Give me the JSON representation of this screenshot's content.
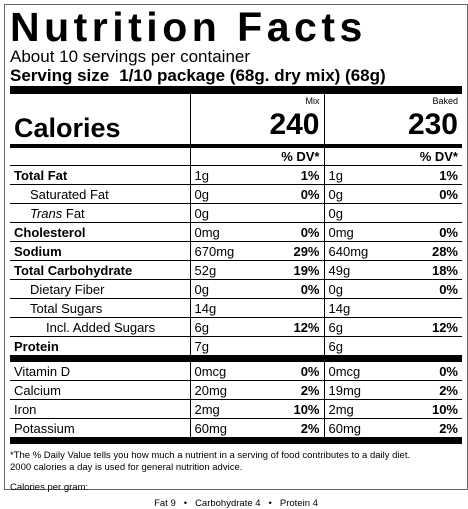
{
  "header": {
    "title": "Nutrition Facts",
    "servings": "About 10 servings per container",
    "serving_size_label": "Serving size",
    "serving_size_value": "1/10 package (68g. dry mix) (68g)"
  },
  "columns": [
    "Mix",
    "Baked"
  ],
  "calories": {
    "label": "Calories",
    "values": [
      "240",
      "230"
    ]
  },
  "dv_header": "% DV*",
  "nutrients": [
    {
      "label": "Total Fat",
      "bold": true,
      "indent": 0,
      "mix": [
        "1g",
        "1%"
      ],
      "baked": [
        "1g",
        "1%"
      ]
    },
    {
      "label": "Saturated Fat",
      "bold": false,
      "indent": 1,
      "mix": [
        "0g",
        "0%"
      ],
      "baked": [
        "0g",
        "0%"
      ]
    },
    {
      "label_italic": "Trans",
      "label": "Fat",
      "bold": false,
      "indent": 1,
      "mix": [
        "0g"
      ],
      "baked": [
        "0g"
      ]
    },
    {
      "label": "Cholesterol",
      "bold": true,
      "indent": 0,
      "mix": [
        "0mg",
        "0%"
      ],
      "baked": [
        "0mg",
        "0%"
      ]
    },
    {
      "label": "Sodium",
      "bold": true,
      "indent": 0,
      "mix": [
        "670mg",
        "29%"
      ],
      "baked": [
        "640mg",
        "28%"
      ]
    },
    {
      "label": "Total Carbohydrate",
      "bold": true,
      "indent": 0,
      "mix": [
        "52g",
        "19%"
      ],
      "baked": [
        "49g",
        "18%"
      ]
    },
    {
      "label": "Dietary Fiber",
      "bold": false,
      "indent": 1,
      "mix": [
        "0g",
        "0%"
      ],
      "baked": [
        "0g",
        "0%"
      ]
    },
    {
      "label": "Total Sugars",
      "bold": false,
      "indent": 1,
      "mix": [
        "14g"
      ],
      "baked": [
        "14g"
      ]
    },
    {
      "label": "Incl. Added Sugars",
      "bold": false,
      "indent": 2,
      "mix": [
        "6g",
        "12%"
      ],
      "baked": [
        "6g",
        "12%"
      ]
    },
    {
      "label": "Protein",
      "bold": true,
      "indent": 0,
      "mix": [
        "7g"
      ],
      "baked": [
        "6g"
      ]
    }
  ],
  "vitamins": [
    {
      "label": "Vitamin D",
      "mix": [
        "0mcg",
        "0%"
      ],
      "baked": [
        "0mcg",
        "0%"
      ]
    },
    {
      "label": "Calcium",
      "mix": [
        "20mg",
        "2%"
      ],
      "baked": [
        "19mg",
        "2%"
      ]
    },
    {
      "label": "Iron",
      "mix": [
        "2mg",
        "10%"
      ],
      "baked": [
        "2mg",
        "10%"
      ]
    },
    {
      "label": "Potassium",
      "mix": [
        "60mg",
        "2%"
      ],
      "baked": [
        "60mg",
        "2%"
      ]
    }
  ],
  "footnote": [
    "*The % Daily Value tells you how much a nutrient in a serving of food contributes to a daily diet.",
    "2000 calories a day is used for general nutrition advice."
  ],
  "calories_per_gram": {
    "label": "Calories per gram:",
    "items": [
      "Fat 9",
      "Carbohydrate 4",
      "Protein 4"
    ],
    "separator": "•"
  }
}
